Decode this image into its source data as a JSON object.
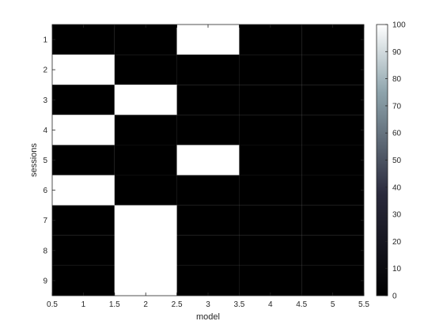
{
  "chart_data": {
    "type": "heatmap",
    "title": "",
    "xlabel": "model",
    "ylabel": "sessions",
    "x_ticks": [
      "0.5",
      "1",
      "1.5",
      "2",
      "2.5",
      "3",
      "3.5",
      "4",
      "4.5",
      "5",
      "5.5"
    ],
    "y_ticks": [
      "1",
      "2",
      "3",
      "4",
      "5",
      "6",
      "7",
      "8",
      "9"
    ],
    "xlim": [
      0.5,
      5.5
    ],
    "ylim": [
      0.5,
      9.5
    ],
    "rows": [
      "1",
      "2",
      "3",
      "4",
      "5",
      "6",
      "7",
      "8",
      "9"
    ],
    "columns": [
      "1",
      "2",
      "3",
      "4",
      "5"
    ],
    "values": [
      [
        0,
        0,
        100,
        0,
        0
      ],
      [
        100,
        0,
        0,
        0,
        0
      ],
      [
        0,
        100,
        0,
        0,
        0
      ],
      [
        100,
        0,
        0,
        0,
        0
      ],
      [
        0,
        0,
        100,
        0,
        0
      ],
      [
        100,
        0,
        0,
        0,
        0
      ],
      [
        0,
        100,
        0,
        0,
        0
      ],
      [
        0,
        100,
        0,
        0,
        0
      ],
      [
        0,
        100,
        0,
        0,
        0
      ]
    ],
    "colorbar": {
      "range": [
        0,
        100
      ],
      "ticks": [
        "0",
        "10",
        "20",
        "30",
        "40",
        "50",
        "60",
        "70",
        "80",
        "90",
        "100"
      ],
      "colormap": "bone",
      "low_color": "#000000",
      "mid_color": "#4b5a78",
      "high_color": "#ffffff"
    },
    "grid": false,
    "legend": "none"
  }
}
